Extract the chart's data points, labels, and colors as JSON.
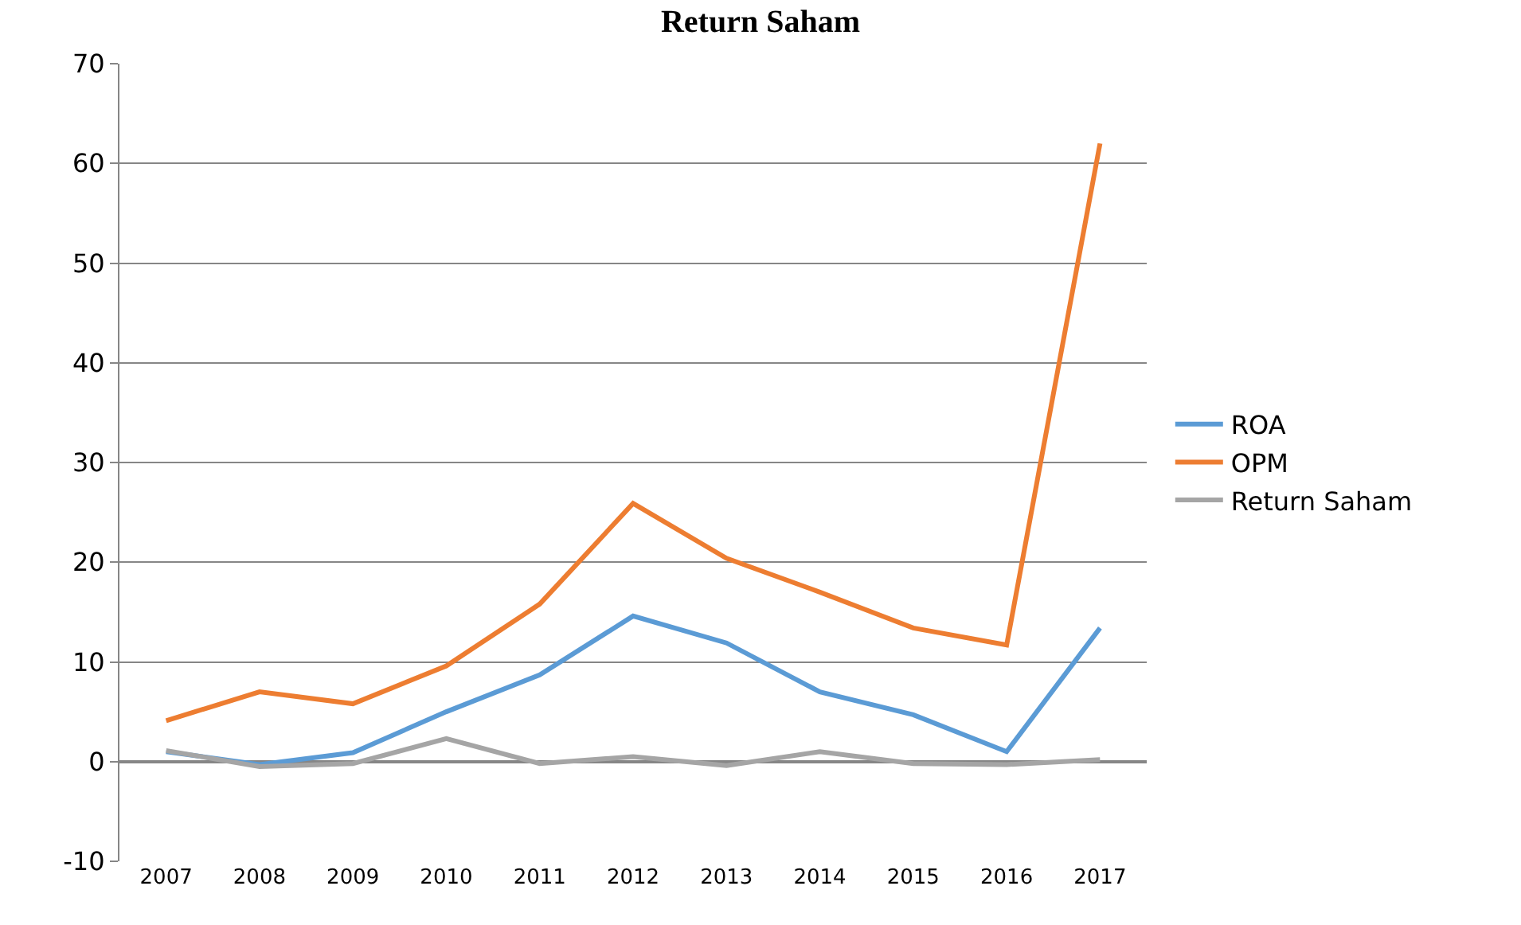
{
  "chart_data": {
    "type": "line",
    "title": "Return Saham",
    "categories": [
      "2007",
      "2008",
      "2009",
      "2010",
      "2011",
      "2012",
      "2013",
      "2014",
      "2015",
      "2016",
      "2017"
    ],
    "series": [
      {
        "name": "ROA",
        "color": "#5b9bd5",
        "values": [
          1.0,
          -0.3,
          0.9,
          5.0,
          8.7,
          14.6,
          11.9,
          7.0,
          4.7,
          1.0,
          13.4
        ]
      },
      {
        "name": "OPM",
        "color": "#ed7d31",
        "values": [
          4.1,
          7.0,
          5.8,
          9.6,
          15.8,
          25.9,
          20.4,
          17.0,
          13.4,
          11.7,
          62.0
        ]
      },
      {
        "name": "Return Saham",
        "color": "#a5a5a5",
        "values": [
          1.1,
          -0.5,
          -0.2,
          2.3,
          -0.2,
          0.5,
          -0.4,
          1.0,
          -0.2,
          -0.3,
          0.2
        ]
      }
    ],
    "ylim": [
      -10,
      70
    ],
    "yticks": [
      -10,
      0,
      10,
      20,
      30,
      40,
      50,
      60,
      70
    ],
    "grid": "y",
    "legend": "right",
    "marker": "none",
    "line_style": "solid"
  }
}
